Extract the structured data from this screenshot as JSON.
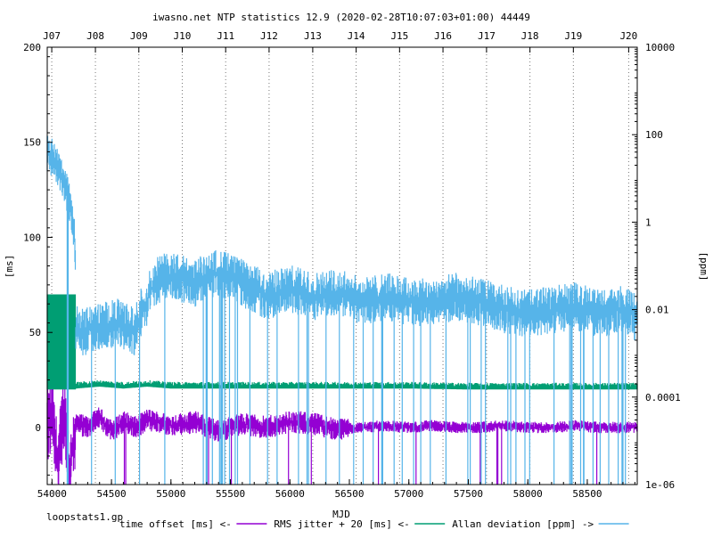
{
  "chart_data": {
    "type": "line",
    "title": "iwasno.net NTP statistics 12.9 (2020-02-28T10:07:03+01:00)  44449",
    "footer_left": "loopstats1.gp",
    "xlabel": "MJD",
    "ylabel_left": "[ms]",
    "ylabel_right": "[ppm]",
    "xlim": [
      53960,
      58920
    ],
    "ylim_left": [
      -30,
      200
    ],
    "ylim_right_log10": [
      -6,
      4
    ],
    "x_ticks": [
      54000,
      54500,
      55000,
      55500,
      56000,
      56500,
      57000,
      57500,
      58000,
      58500
    ],
    "x_tick_labels": [
      "54000",
      "54500",
      "55000",
      "55500",
      "56000",
      "56500",
      "57000",
      "57500",
      "58000",
      "58500"
    ],
    "y_ticks_left": [
      0,
      50,
      100,
      150,
      200
    ],
    "y_tick_labels_left": [
      "0",
      "50",
      "100",
      "150",
      "200"
    ],
    "y_ticks_right_log10": [
      -6,
      -4,
      -2,
      0,
      2,
      4
    ],
    "y_tick_labels_right": [
      "1e-06",
      "0.0001",
      "0.01",
      "1",
      "100",
      "10000"
    ],
    "x2_ticks": [
      53998,
      54365,
      54730,
      55095,
      55460,
      55825,
      56192,
      56557,
      56922,
      57287,
      57653,
      58018,
      58383,
      58848
    ],
    "x2_tick_labels": [
      "J07",
      "J08",
      "J09",
      "J10",
      "J11",
      "J12",
      "J13",
      "J14",
      "J15",
      "J16",
      "J17",
      "J18",
      "J19",
      "J20"
    ],
    "grid": "vertical dotted at top ticks",
    "series": [
      {
        "name": "time offset [ms] <-",
        "color": "#9400d3",
        "axis": "left",
        "x": [
          53960,
          54000,
          54050,
          54100,
          54150,
          54200,
          54300,
          54400,
          54500,
          54600,
          54700,
          54800,
          55000,
          55200,
          55400,
          55600,
          55800,
          56000,
          56200,
          56400,
          56600,
          56800,
          57000,
          57200,
          57400,
          57600,
          57800,
          58000,
          58200,
          58400,
          58600,
          58800,
          58920
        ],
        "y": [
          0,
          5,
          -20,
          10,
          -25,
          2,
          0,
          5,
          -2,
          3,
          0,
          4,
          1,
          3,
          -2,
          2,
          0,
          3,
          2,
          -1,
          0,
          1,
          0,
          1,
          0,
          0,
          1,
          0,
          0,
          1,
          0,
          0,
          0
        ]
      },
      {
        "name": "RMS jitter + 20 [ms] <-",
        "color": "#009e73",
        "axis": "left",
        "x": [
          53960,
          54000,
          54100,
          54150,
          54200,
          54400,
          54600,
          54800,
          55000,
          55500,
          56000,
          56500,
          57000,
          57500,
          58000,
          58500,
          58920
        ],
        "y": [
          70,
          70,
          70,
          70,
          21,
          22,
          21,
          22,
          21,
          21,
          21,
          21,
          21,
          20.5,
          20.5,
          20.5,
          20.5
        ]
      },
      {
        "name": "Allan deviation [ppm] ->",
        "color": "#56b4e9",
        "axis": "right",
        "x": [
          53960,
          54000,
          54100,
          54150,
          54200,
          54250,
          54400,
          54550,
          54700,
          54800,
          54900,
          55000,
          55200,
          55400,
          55600,
          55800,
          56000,
          56200,
          56400,
          56600,
          56800,
          57000,
          57200,
          57400,
          57600,
          57800,
          58000,
          58200,
          58400,
          58600,
          58800,
          58920
        ],
        "y": [
          40,
          30,
          8,
          2,
          0.0035,
          0.003,
          0.004,
          0.005,
          0.003,
          0.015,
          0.05,
          0.06,
          0.04,
          0.07,
          0.04,
          0.02,
          0.03,
          0.02,
          0.025,
          0.015,
          0.02,
          0.015,
          0.015,
          0.02,
          0.015,
          0.01,
          0.008,
          0.01,
          0.012,
          0.008,
          0.01,
          0.006
        ]
      }
    ]
  }
}
